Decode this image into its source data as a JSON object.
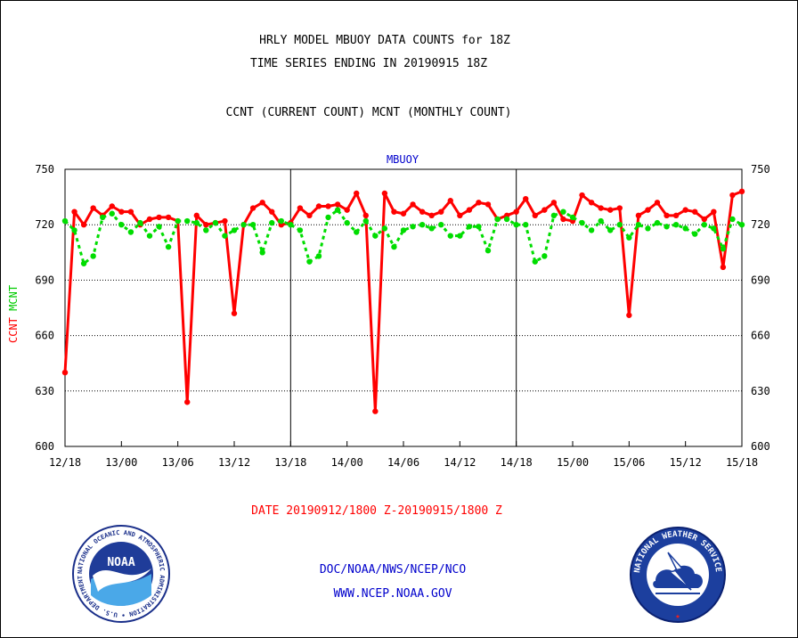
{
  "header": {
    "title_line1": "HRLY MODEL MBUOY DATA COUNTS for 18Z",
    "title_line2": "TIME SERIES ENDING IN 20190915 18Z",
    "title_line3": "CCNT (CURRENT COUNT) MCNT (MONTHLY COUNT)"
  },
  "footer": {
    "date_range": "DATE 20190912/1800 Z-20190915/1800 Z",
    "org_line": "DOC/NOAA/NWS/NCEP/NCO",
    "url_line": "WWW.NCEP.NOAA.GOV",
    "noaa_logo_text": "NOAA",
    "noaa_ring_text": "NATIONAL OCEANIC AND ATMOSPHERIC ADMINISTRATION • U.S. DEPARTMENT OF COMMERCE •",
    "nws_ring_text": "NATIONAL WEATHER SERVICE"
  },
  "colors": {
    "ccnt": "#ff0000",
    "mcnt": "#00dd00",
    "title_blue": "#0000cc",
    "axis": "#000000"
  },
  "chart_data": {
    "type": "line",
    "title": "MBUOY",
    "ylabel_parts": [
      "CCNT",
      "MCNT"
    ],
    "ylim": [
      600,
      750
    ],
    "yticks": [
      600,
      630,
      660,
      690,
      720,
      750
    ],
    "xticks": [
      "12/18",
      "13/00",
      "13/06",
      "13/12",
      "13/18",
      "14/00",
      "14/06",
      "14/12",
      "14/18",
      "15/00",
      "15/06",
      "15/12",
      "15/18"
    ],
    "x_hours_range": [
      0,
      72
    ],
    "day_separators_hours": [
      24,
      48
    ],
    "grid": true,
    "series": [
      {
        "name": "CCNT",
        "color": "#ff0000",
        "style": "solid",
        "values": [
          640,
          727,
          720,
          729,
          725,
          730,
          727,
          727,
          720,
          723,
          724,
          724,
          722,
          624,
          725,
          720,
          721,
          722,
          672,
          720,
          729,
          732,
          727,
          720,
          721,
          729,
          725,
          730,
          730,
          731,
          728,
          737,
          725,
          619,
          737,
          727,
          726,
          731,
          727,
          725,
          727,
          733,
          725,
          728,
          732,
          731,
          723,
          725,
          727,
          734,
          725,
          728,
          732,
          723,
          722,
          736,
          732,
          729,
          728,
          729,
          671,
          725,
          728,
          732,
          725,
          725,
          728,
          727,
          723,
          727,
          697,
          736,
          738
        ]
      },
      {
        "name": "MCNT",
        "color": "#00dd00",
        "style": "dotted",
        "values": [
          722,
          717,
          699,
          703,
          724,
          726,
          720,
          716,
          721,
          714,
          719,
          708,
          722,
          722,
          721,
          717,
          721,
          714,
          717,
          720,
          720,
          705,
          721,
          722,
          720,
          717,
          700,
          703,
          724,
          728,
          721,
          716,
          722,
          714,
          718,
          708,
          717,
          719,
          720,
          718,
          720,
          714,
          714,
          719,
          719,
          706,
          723,
          723,
          720,
          720,
          700,
          703,
          725,
          727,
          724,
          721,
          717,
          722,
          717,
          720,
          713,
          720,
          718,
          721,
          719,
          720,
          718,
          715,
          720,
          718,
          707,
          723,
          720
        ]
      }
    ]
  }
}
